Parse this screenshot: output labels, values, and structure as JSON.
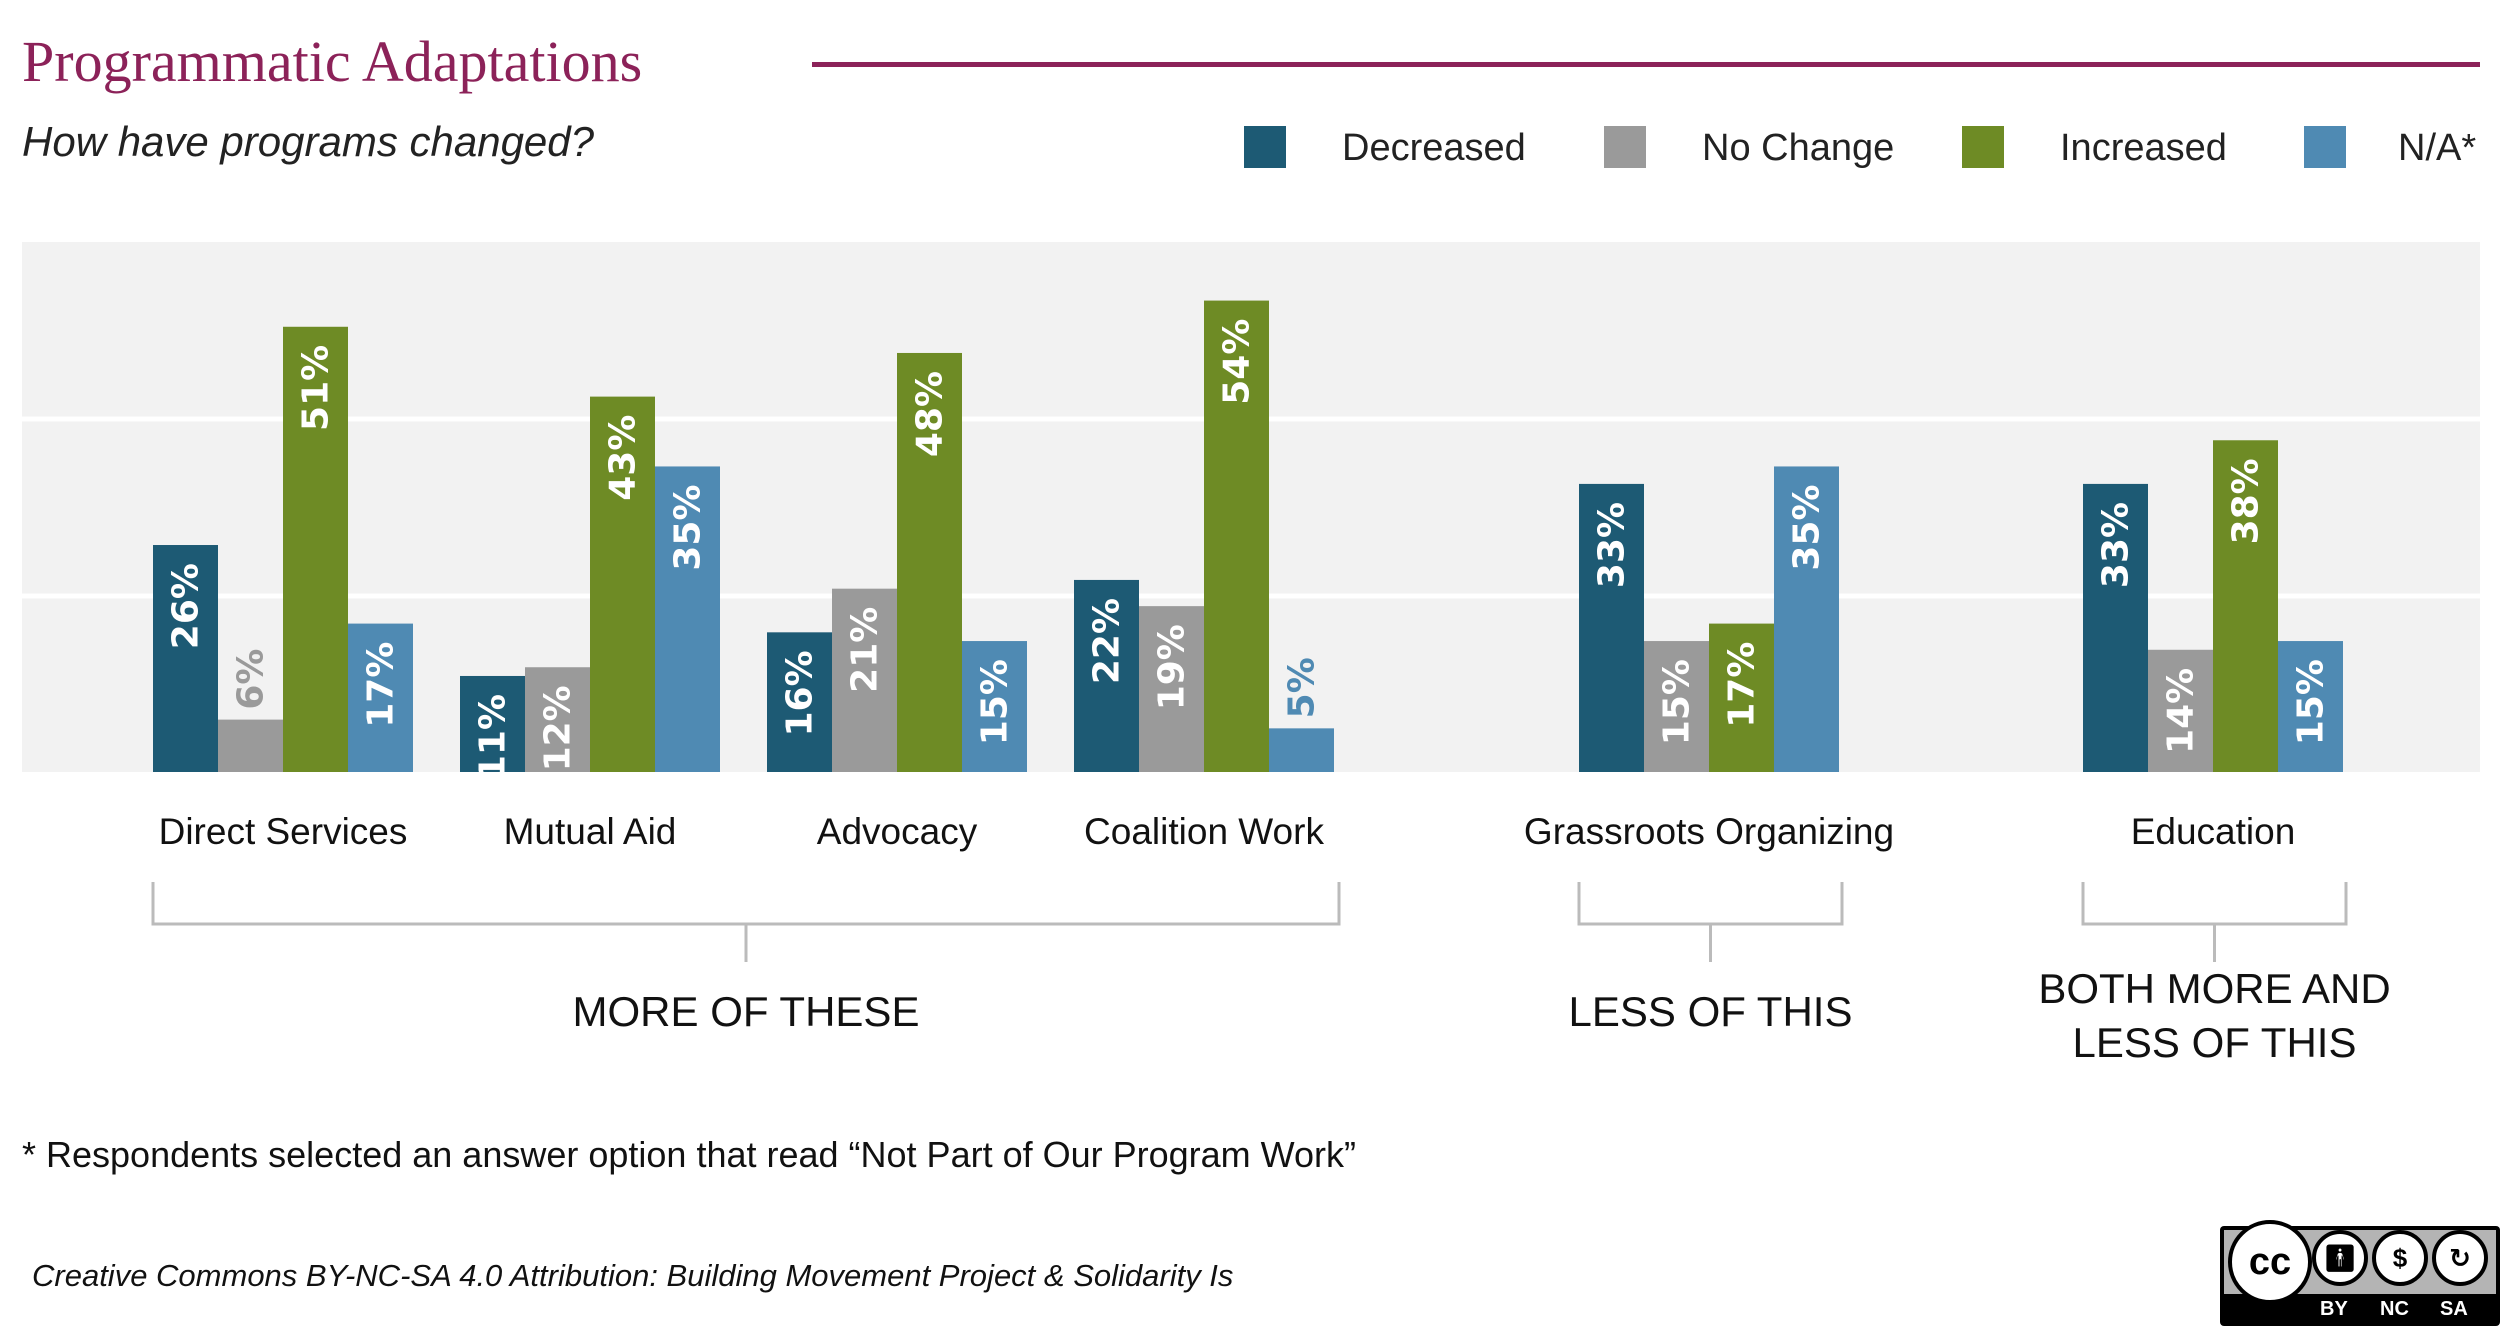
{
  "header": {
    "title": "Programmatic Adaptations",
    "subtitle": "How have programs changed?"
  },
  "colors": {
    "accent": "#8c2259",
    "decreased": "#1d5a74",
    "no_change": "#9a9a9a",
    "increased": "#6e8b25",
    "na": "#4f8ab3",
    "plot_bg": "#f2f2f2",
    "bracket": "#bbbbbb"
  },
  "legend": [
    {
      "label": "Decreased",
      "color": "#1d5a74"
    },
    {
      "label": "No Change",
      "color": "#9a9a9a"
    },
    {
      "label": "Increased",
      "color": "#6e8b25"
    },
    {
      "label": "N/A*",
      "color": "#4f8ab3"
    }
  ],
  "chart_data": {
    "type": "bar",
    "title": "Programmatic Adaptations",
    "subtitle": "How have programs changed?",
    "xlabel": "",
    "ylabel": "",
    "ylim": [
      0,
      60
    ],
    "grid": true,
    "legend_position": "top-right",
    "categories": [
      "Direct Services",
      "Mutual Aid",
      "Advocacy",
      "Coalition Work",
      "Grassroots Organizing",
      "Education"
    ],
    "series": [
      {
        "name": "Decreased",
        "values": [
          26,
          11,
          16,
          22,
          33,
          33
        ],
        "labels": [
          "26%",
          "11%",
          "16%",
          "22%",
          "33%",
          "33%"
        ]
      },
      {
        "name": "No Change",
        "values": [
          6,
          12,
          21,
          19,
          15,
          14
        ],
        "labels": [
          "6%",
          "12%",
          "21%",
          "19%",
          "15%",
          "14%"
        ]
      },
      {
        "name": "Increased",
        "values": [
          51,
          43,
          48,
          54,
          17,
          38
        ],
        "labels": [
          "51%",
          "43%",
          "48%",
          "54%",
          "17%",
          "38%"
        ]
      },
      {
        "name": "N/A*",
        "values": [
          17,
          35,
          15,
          5,
          35,
          15
        ],
        "labels": [
          "17%",
          "35%",
          "15%",
          "5%",
          "35%",
          "15%"
        ]
      }
    ],
    "groups": [
      {
        "label": "MORE OF THESE",
        "categories": [
          "Direct Services",
          "Mutual Aid",
          "Advocacy",
          "Coalition Work"
        ]
      },
      {
        "label": "LESS OF THIS",
        "categories": [
          "Grassroots Organizing"
        ]
      },
      {
        "label": "BOTH MORE AND LESS OF THIS",
        "categories": [
          "Education"
        ]
      }
    ]
  },
  "footnote": "* Respondents selected an answer option that read “Not Part of Our Program Work”",
  "credit": "Creative Commons BY-NC-SA 4.0 Attribution: Building Movement Project & Solidarity Is",
  "license": {
    "badge_text": "cc",
    "labels": [
      "BY",
      "NC",
      "SA"
    ]
  }
}
